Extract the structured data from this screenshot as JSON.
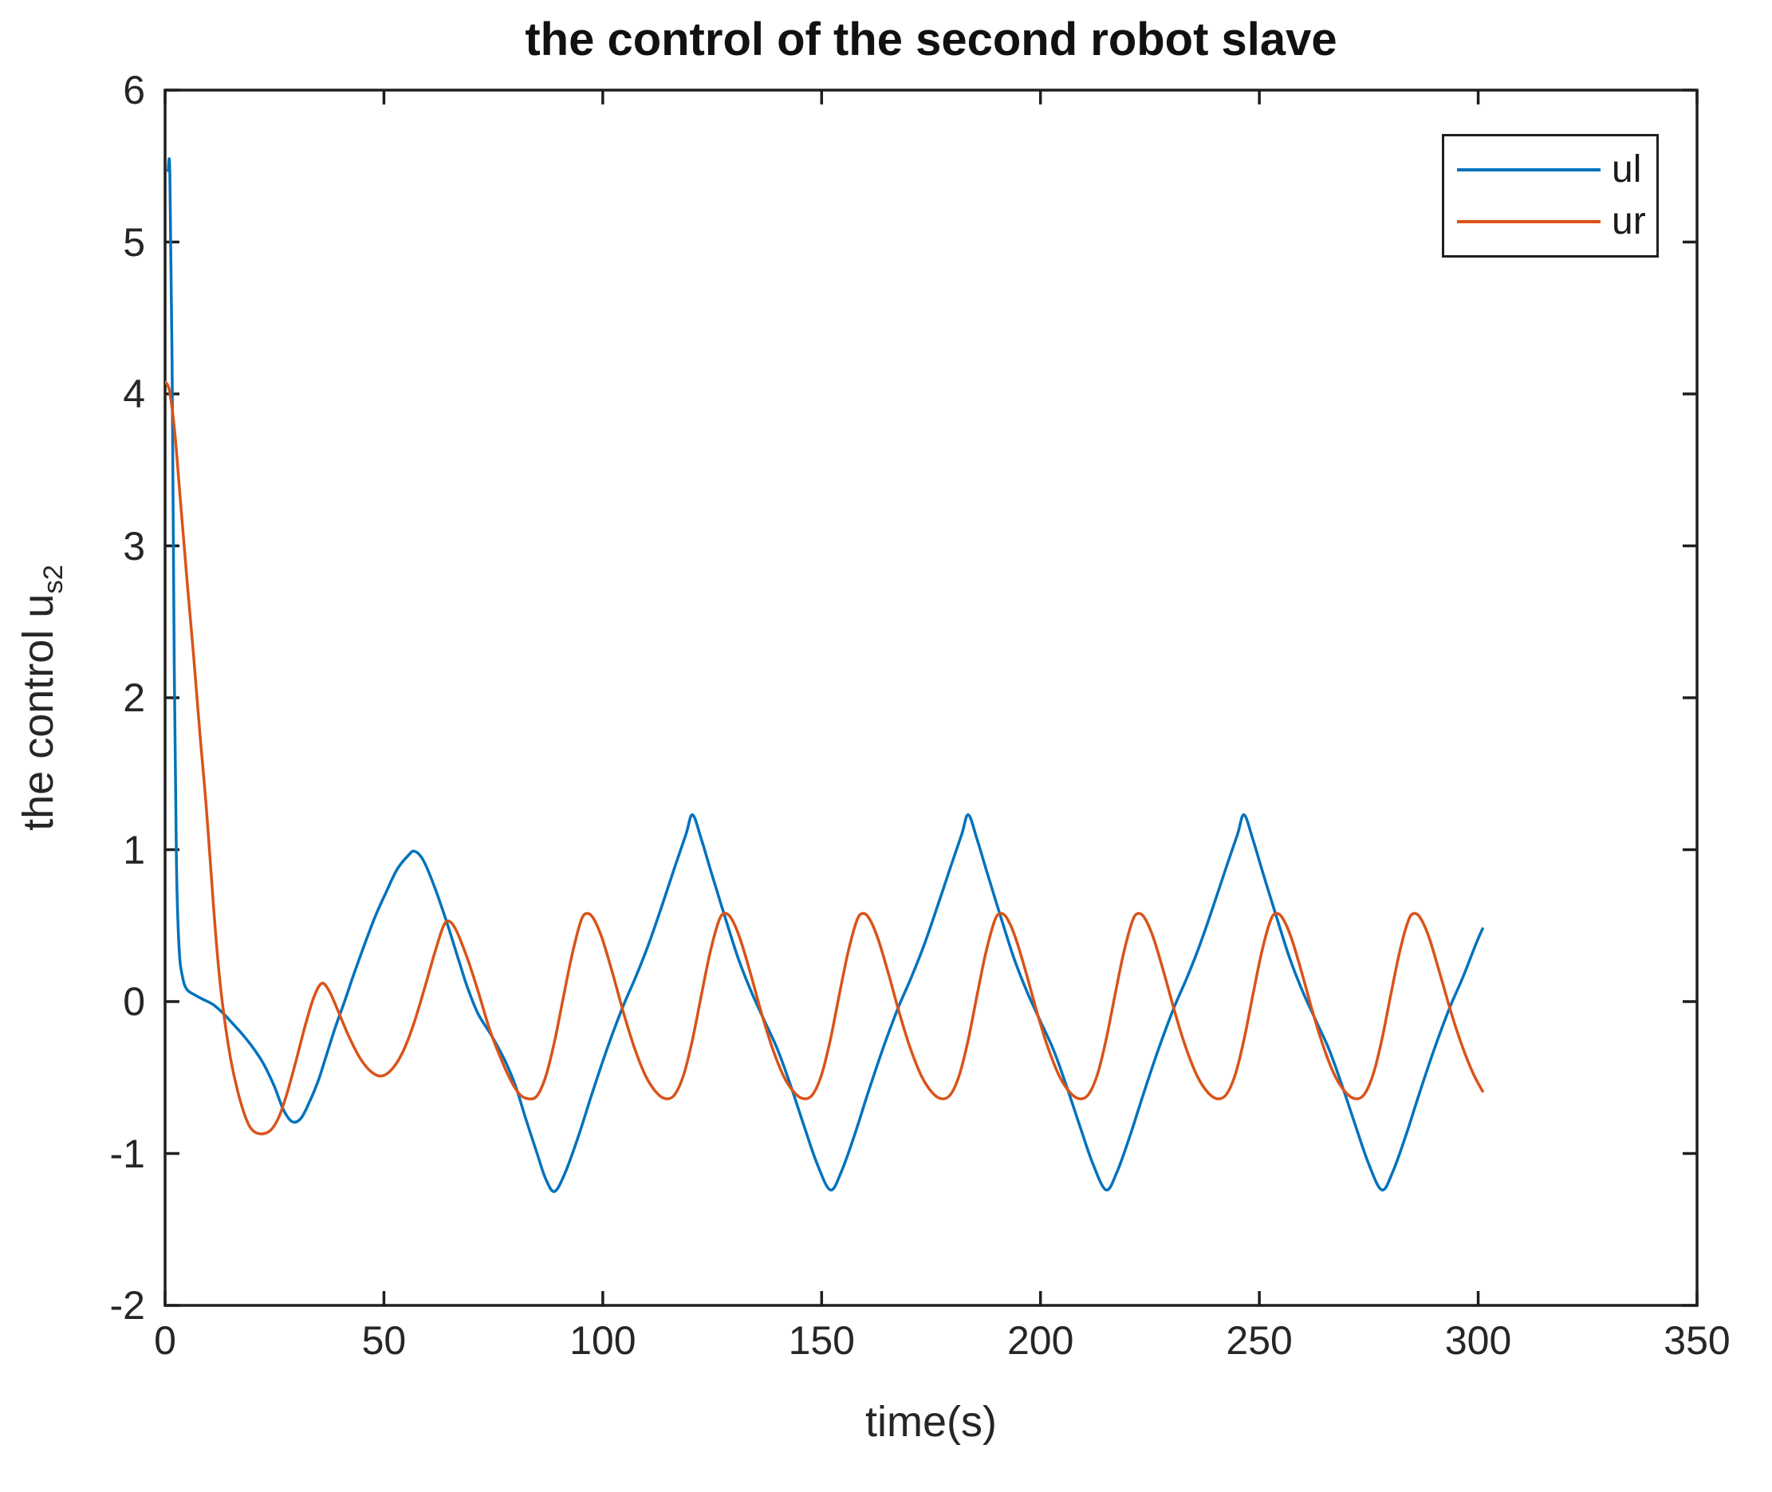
{
  "figure": {
    "title": "the control of the second robot slave",
    "xlabel": "time(s)",
    "ylabel_main": "the control u",
    "ylabel_sub": "s2"
  },
  "legend": {
    "items": [
      {
        "label": "ul",
        "color": "#0072BD"
      },
      {
        "label": "ur",
        "color": "#D95319"
      }
    ]
  },
  "axes": {
    "axis_color": "#1f1f1f",
    "text_color": "#262626",
    "background": "#ffffff"
  },
  "chart_data": {
    "type": "line",
    "title": "the control of the second robot slave",
    "xlabel": "time(s)",
    "ylabel": "the control u_s2",
    "xlim": [
      0,
      350
    ],
    "ylim": [
      -2,
      6
    ],
    "xticks": [
      0,
      50,
      100,
      150,
      200,
      250,
      300,
      350
    ],
    "yticks": [
      6,
      5,
      4,
      3,
      2,
      1,
      0,
      -1,
      -2
    ],
    "grid": false,
    "legend_position": "top-right-inside",
    "series": [
      {
        "name": "ul",
        "color": "#0072BD",
        "points": [
          [
            0.7,
            5.47
          ],
          [
            1.1,
            5.45
          ],
          [
            1.6,
            4.2
          ],
          [
            2.1,
            2.2
          ],
          [
            2.6,
            0.9
          ],
          [
            3.2,
            0.35
          ],
          [
            4,
            0.16
          ],
          [
            5,
            0.08
          ],
          [
            7,
            0.04
          ],
          [
            9,
            0.01
          ],
          [
            11,
            -0.02
          ],
          [
            13,
            -0.07
          ],
          [
            15,
            -0.13
          ],
          [
            17.5,
            -0.21
          ],
          [
            20,
            -0.3
          ],
          [
            22.5,
            -0.41
          ],
          [
            25,
            -0.56
          ],
          [
            27,
            -0.71
          ],
          [
            29,
            -0.79
          ],
          [
            31,
            -0.77
          ],
          [
            33,
            -0.66
          ],
          [
            35,
            -0.52
          ],
          [
            37,
            -0.34
          ],
          [
            39,
            -0.16
          ],
          [
            41,
            0
          ],
          [
            43,
            0.17
          ],
          [
            45.5,
            0.37
          ],
          [
            48,
            0.56
          ],
          [
            50.5,
            0.72
          ],
          [
            53,
            0.87
          ],
          [
            55.5,
            0.96
          ],
          [
            57,
            0.99
          ],
          [
            59,
            0.93
          ],
          [
            61.5,
            0.76
          ],
          [
            64.5,
            0.51
          ],
          [
            67,
            0.28
          ],
          [
            69,
            0.1
          ],
          [
            71.5,
            -0.08
          ],
          [
            74.5,
            -0.22
          ],
          [
            77.5,
            -0.38
          ],
          [
            80,
            -0.55
          ],
          [
            82.5,
            -0.78
          ],
          [
            85,
            -1
          ],
          [
            87,
            -1.17
          ],
          [
            89,
            -1.25
          ],
          [
            91.5,
            -1.12
          ],
          [
            94.5,
            -0.88
          ],
          [
            97.5,
            -0.61
          ],
          [
            101,
            -0.31
          ],
          [
            104.5,
            -0.04
          ],
          [
            107.5,
            0.16
          ],
          [
            110.5,
            0.38
          ],
          [
            113.5,
            0.63
          ],
          [
            116.5,
            0.89
          ],
          [
            119,
            1.1
          ],
          [
            120.5,
            1.23
          ],
          [
            122.5,
            1.07
          ],
          [
            125,
            0.83
          ],
          [
            128,
            0.55
          ],
          [
            131,
            0.28
          ],
          [
            134,
            0.06
          ],
          [
            137,
            -0.13
          ],
          [
            140,
            -0.32
          ],
          [
            143,
            -0.56
          ],
          [
            146,
            -0.82
          ],
          [
            149,
            -1.07
          ],
          [
            152,
            -1.24
          ],
          [
            154.5,
            -1.12
          ],
          [
            157.5,
            -0.88
          ],
          [
            160.5,
            -0.61
          ],
          [
            164,
            -0.31
          ],
          [
            167.5,
            -0.04
          ],
          [
            170.5,
            0.16
          ],
          [
            173.5,
            0.38
          ],
          [
            176.5,
            0.63
          ],
          [
            179.5,
            0.89
          ],
          [
            182,
            1.1
          ],
          [
            183.5,
            1.23
          ],
          [
            185.5,
            1.07
          ],
          [
            188,
            0.83
          ],
          [
            191,
            0.55
          ],
          [
            194,
            0.28
          ],
          [
            197,
            0.06
          ],
          [
            200,
            -0.13
          ],
          [
            203,
            -0.32
          ],
          [
            206,
            -0.56
          ],
          [
            209,
            -0.82
          ],
          [
            212,
            -1.07
          ],
          [
            215,
            -1.24
          ],
          [
            217.5,
            -1.12
          ],
          [
            220.5,
            -0.88
          ],
          [
            223.5,
            -0.61
          ],
          [
            227,
            -0.31
          ],
          [
            230.5,
            -0.04
          ],
          [
            233.5,
            0.16
          ],
          [
            236.5,
            0.38
          ],
          [
            239.5,
            0.63
          ],
          [
            242.5,
            0.89
          ],
          [
            245,
            1.1
          ],
          [
            246.5,
            1.23
          ],
          [
            248.5,
            1.07
          ],
          [
            251,
            0.83
          ],
          [
            254,
            0.55
          ],
          [
            257,
            0.28
          ],
          [
            260,
            0.06
          ],
          [
            263,
            -0.13
          ],
          [
            266,
            -0.32
          ],
          [
            269,
            -0.56
          ],
          [
            272,
            -0.82
          ],
          [
            275,
            -1.07
          ],
          [
            278,
            -1.24
          ],
          [
            280.5,
            -1.12
          ],
          [
            283.5,
            -0.88
          ],
          [
            286.5,
            -0.61
          ],
          [
            290,
            -0.31
          ],
          [
            293.5,
            -0.04
          ],
          [
            296.5,
            0.16
          ],
          [
            299.5,
            0.38
          ],
          [
            301,
            0.48
          ]
        ]
      },
      {
        "name": "ur",
        "color": "#D95319",
        "points": [
          [
            0,
            4.08
          ],
          [
            1,
            4.02
          ],
          [
            2.2,
            3.75
          ],
          [
            3.5,
            3.3
          ],
          [
            5,
            2.78
          ],
          [
            6.5,
            2.28
          ],
          [
            8,
            1.75
          ],
          [
            9.5,
            1.25
          ],
          [
            11,
            0.65
          ],
          [
            12.3,
            0.2
          ],
          [
            13.5,
            -0.1
          ],
          [
            15,
            -0.38
          ],
          [
            16.5,
            -0.58
          ],
          [
            18,
            -0.73
          ],
          [
            19.5,
            -0.83
          ],
          [
            21.5,
            -0.87
          ],
          [
            24,
            -0.85
          ],
          [
            26,
            -0.76
          ],
          [
            28,
            -0.59
          ],
          [
            30,
            -0.38
          ],
          [
            32,
            -0.16
          ],
          [
            34,
            0.03
          ],
          [
            35.8,
            0.12
          ],
          [
            37.5,
            0.07
          ],
          [
            39.5,
            -0.06
          ],
          [
            42,
            -0.23
          ],
          [
            44.5,
            -0.37
          ],
          [
            47,
            -0.46
          ],
          [
            49.5,
            -0.49
          ],
          [
            52,
            -0.44
          ],
          [
            54.5,
            -0.32
          ],
          [
            57,
            -0.13
          ],
          [
            59.5,
            0.11
          ],
          [
            61.5,
            0.31
          ],
          [
            63.5,
            0.49
          ],
          [
            64.8,
            0.53
          ],
          [
            66.5,
            0.47
          ],
          [
            69,
            0.29
          ],
          [
            71.5,
            0.07
          ],
          [
            74,
            -0.17
          ],
          [
            76.5,
            -0.36
          ],
          [
            79,
            -0.52
          ],
          [
            81,
            -0.61
          ],
          [
            83,
            -0.64
          ],
          [
            85,
            -0.62
          ],
          [
            87,
            -0.49
          ],
          [
            89,
            -0.26
          ],
          [
            91,
            0.03
          ],
          [
            93,
            0.31
          ],
          [
            95,
            0.53
          ],
          [
            96.3,
            0.58
          ],
          [
            97.8,
            0.55
          ],
          [
            99.8,
            0.42
          ],
          [
            102.3,
            0.18
          ],
          [
            104.8,
            -0.08
          ],
          [
            107.3,
            -0.31
          ],
          [
            109.8,
            -0.49
          ],
          [
            112.3,
            -0.6
          ],
          [
            114.5,
            -0.64
          ],
          [
            116.5,
            -0.61
          ],
          [
            118.5,
            -0.48
          ],
          [
            120.5,
            -0.25
          ],
          [
            122.5,
            0.04
          ],
          [
            124.5,
            0.32
          ],
          [
            126.5,
            0.53
          ],
          [
            127.8,
            0.58
          ],
          [
            129.3,
            0.55
          ],
          [
            131.3,
            0.42
          ],
          [
            133.8,
            0.18
          ],
          [
            136.3,
            -0.08
          ],
          [
            138.8,
            -0.31
          ],
          [
            141.3,
            -0.49
          ],
          [
            143.8,
            -0.6
          ],
          [
            146,
            -0.64
          ],
          [
            148,
            -0.61
          ],
          [
            150,
            -0.48
          ],
          [
            152,
            -0.25
          ],
          [
            154,
            0.04
          ],
          [
            156,
            0.32
          ],
          [
            158,
            0.53
          ],
          [
            159.3,
            0.58
          ],
          [
            160.8,
            0.55
          ],
          [
            162.8,
            0.42
          ],
          [
            165.3,
            0.18
          ],
          [
            167.8,
            -0.08
          ],
          [
            170.3,
            -0.31
          ],
          [
            172.8,
            -0.49
          ],
          [
            175.3,
            -0.6
          ],
          [
            177.5,
            -0.64
          ],
          [
            179.5,
            -0.61
          ],
          [
            181.5,
            -0.48
          ],
          [
            183.5,
            -0.25
          ],
          [
            185.5,
            0.04
          ],
          [
            187.5,
            0.32
          ],
          [
            189.5,
            0.53
          ],
          [
            190.8,
            0.58
          ],
          [
            192.3,
            0.55
          ],
          [
            194.3,
            0.42
          ],
          [
            196.8,
            0.18
          ],
          [
            199.3,
            -0.08
          ],
          [
            201.8,
            -0.31
          ],
          [
            204.3,
            -0.49
          ],
          [
            206.8,
            -0.6
          ],
          [
            209,
            -0.64
          ],
          [
            211,
            -0.61
          ],
          [
            213,
            -0.48
          ],
          [
            215,
            -0.25
          ],
          [
            217,
            0.04
          ],
          [
            219,
            0.32
          ],
          [
            221,
            0.53
          ],
          [
            222.3,
            0.58
          ],
          [
            223.8,
            0.55
          ],
          [
            225.8,
            0.42
          ],
          [
            228.3,
            0.18
          ],
          [
            230.8,
            -0.08
          ],
          [
            233.3,
            -0.31
          ],
          [
            235.8,
            -0.49
          ],
          [
            238.3,
            -0.6
          ],
          [
            240.5,
            -0.64
          ],
          [
            242.5,
            -0.61
          ],
          [
            244.5,
            -0.48
          ],
          [
            246.5,
            -0.25
          ],
          [
            248.5,
            0.04
          ],
          [
            250.5,
            0.32
          ],
          [
            252.5,
            0.53
          ],
          [
            253.8,
            0.58
          ],
          [
            255.3,
            0.55
          ],
          [
            257.3,
            0.42
          ],
          [
            259.8,
            0.18
          ],
          [
            262.3,
            -0.08
          ],
          [
            264.8,
            -0.31
          ],
          [
            267.3,
            -0.49
          ],
          [
            269.8,
            -0.6
          ],
          [
            272,
            -0.64
          ],
          [
            274,
            -0.61
          ],
          [
            276,
            -0.48
          ],
          [
            278,
            -0.25
          ],
          [
            280,
            0.04
          ],
          [
            282,
            0.32
          ],
          [
            284,
            0.53
          ],
          [
            285.3,
            0.58
          ],
          [
            286.8,
            0.55
          ],
          [
            288.8,
            0.42
          ],
          [
            291.3,
            0.18
          ],
          [
            293.8,
            -0.07
          ],
          [
            296.3,
            -0.29
          ],
          [
            298.8,
            -0.47
          ],
          [
            301,
            -0.59
          ]
        ]
      }
    ]
  }
}
